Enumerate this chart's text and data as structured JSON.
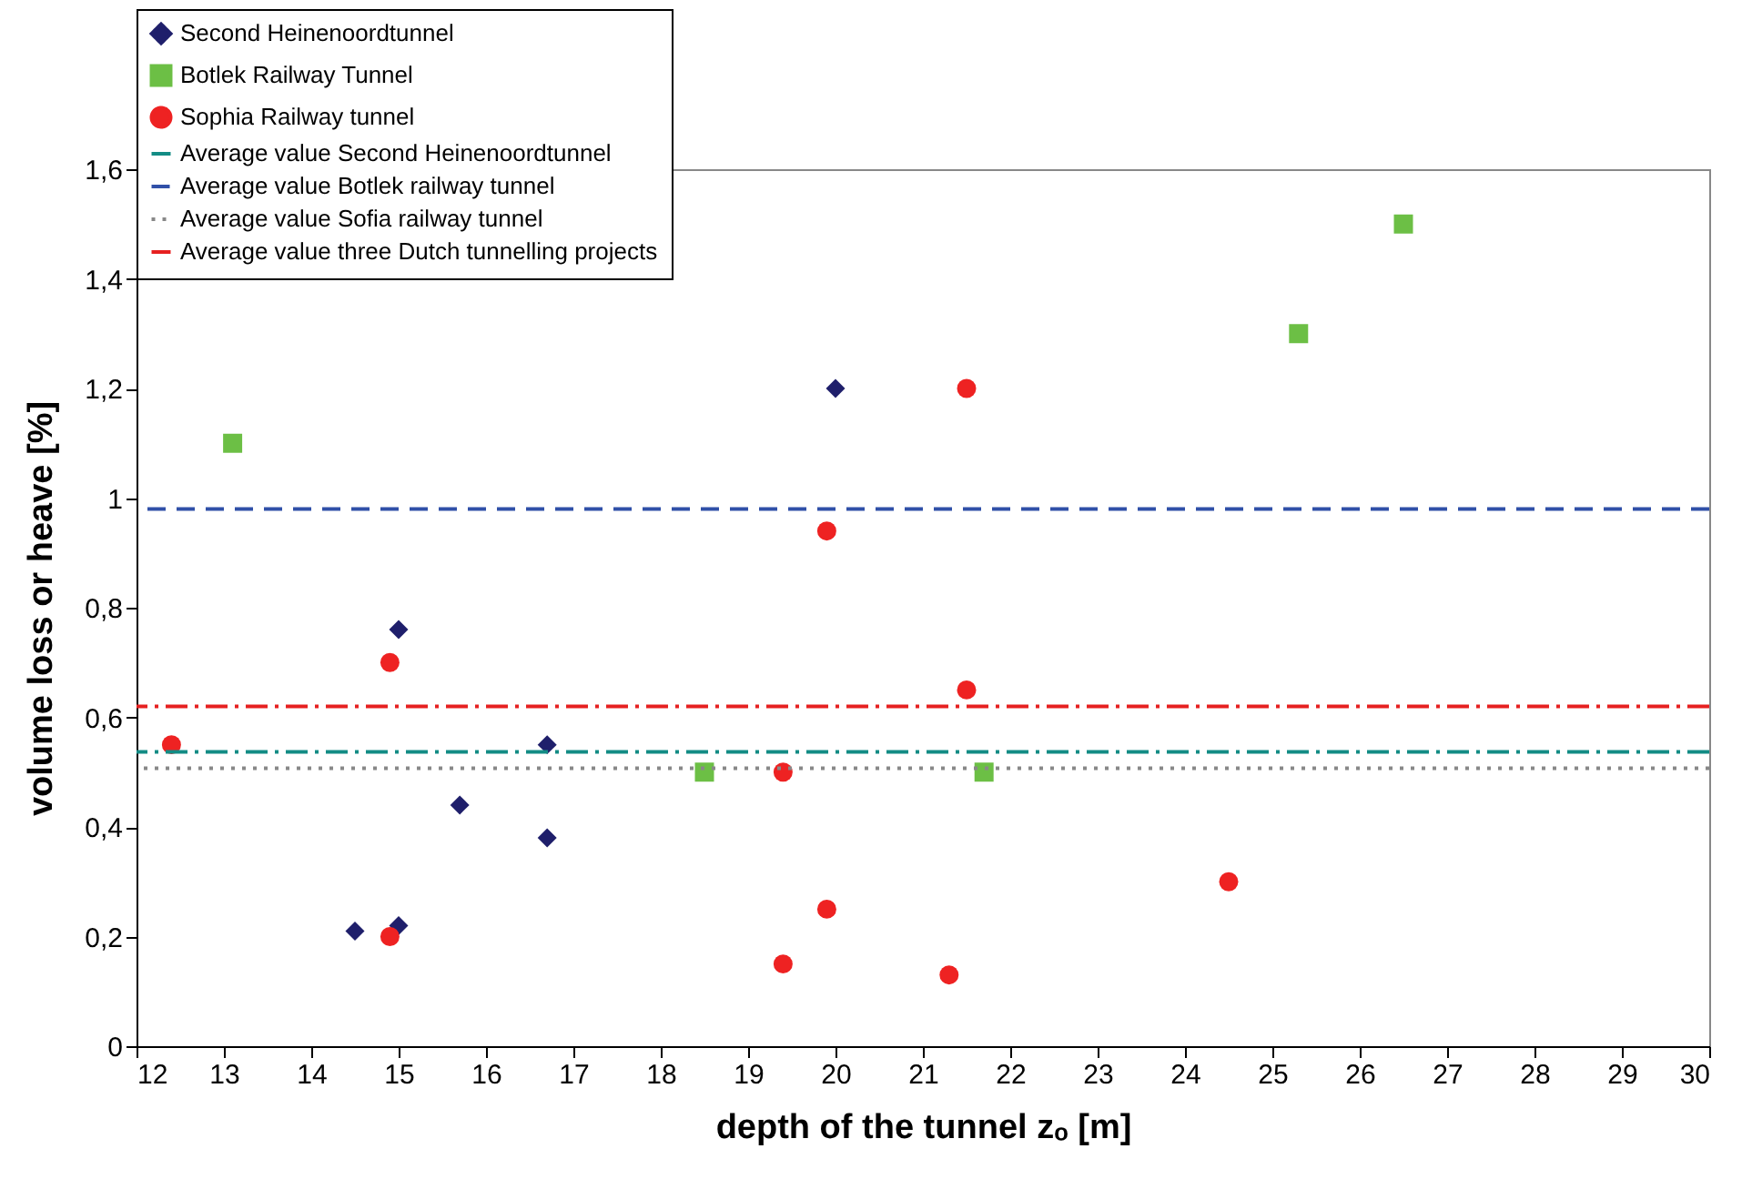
{
  "chart_data": {
    "type": "scatter",
    "xlabel": "depth of the tunnel zₒ [m]",
    "ylabel": "volume loss or heave  [%]",
    "xlim": [
      12,
      30
    ],
    "xticks": [
      12,
      13,
      14,
      15,
      16,
      17,
      18,
      19,
      20,
      21,
      22,
      23,
      24,
      25,
      26,
      27,
      28,
      29,
      30
    ],
    "ylim": [
      0,
      1.6
    ],
    "yticks": [
      0,
      {
        "value": 0.2,
        "label": "0,2"
      },
      {
        "value": 0.4,
        "label": "0,4"
      },
      {
        "value": 0.6,
        "label": "0,6"
      },
      {
        "value": 0.8,
        "label": "0,8"
      },
      1,
      {
        "value": 1.2,
        "label": "1,2"
      },
      {
        "value": 1.4,
        "label": "1,4"
      },
      {
        "value": 1.6,
        "label": "1,6"
      }
    ],
    "grid": false,
    "legend": "top left",
    "series": [
      {
        "name": "Second Heinenoordtunnel",
        "color": "#1f1f6b",
        "marker": "diamond",
        "x": [
          14.5,
          15,
          15,
          15.7,
          16.7,
          16.7,
          20
        ],
        "values": [
          0.21,
          0.22,
          0.76,
          0.44,
          0.55,
          0.38,
          1.2
        ]
      },
      {
        "name": "Botlek Railway Tunnel",
        "color": "#6cbf45",
        "marker": "square",
        "x": [
          13.1,
          18.5,
          21.7,
          25.3,
          26.5
        ],
        "values": [
          1.1,
          0.5,
          0.5,
          1.3,
          1.5
        ]
      },
      {
        "name": "Sophia Railway tunnel",
        "color": "#ee2222",
        "marker": "circle",
        "x": [
          12.4,
          14.9,
          14.9,
          19.4,
          19.4,
          19.9,
          19.9,
          21.3,
          21.5,
          21.5,
          24.5
        ],
        "values": [
          0.55,
          0.7,
          0.2,
          0.5,
          0.15,
          0.94,
          0.25,
          0.13,
          1.2,
          0.65,
          0.3
        ]
      }
    ],
    "ref_lines": [
      {
        "axis": "y",
        "value": 0.537,
        "label": "Average value Second Heinenoordtunnel",
        "color": "#138c85",
        "line_style": "dashdot"
      },
      {
        "axis": "y",
        "value": 0.98,
        "label": "Average value Botlek railway tunnel",
        "color": "#3050a8",
        "line_style": "dashed"
      },
      {
        "axis": "y",
        "value": 0.507,
        "label": "Average value Sofia railway tunnel",
        "color": "#888888",
        "line_style": "dotted"
      },
      {
        "axis": "y",
        "value": 0.62,
        "label": "Average value three Dutch tunnelling projects",
        "color": "#e62020",
        "line_style": "dashdot"
      }
    ]
  }
}
